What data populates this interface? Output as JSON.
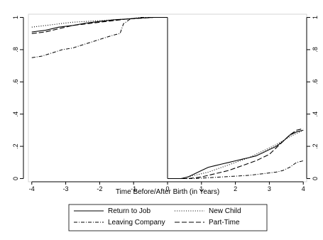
{
  "chart_data": {
    "type": "line",
    "title": "",
    "xlabel": "Time Before/After Birth (in Years)",
    "ylabel": "",
    "xlim": [
      -4.1,
      4.1
    ],
    "ylim": [
      -0.02,
      1.02
    ],
    "xticks": [
      -4,
      -3,
      -2,
      -1,
      0,
      1,
      2,
      3,
      4
    ],
    "xtick_labels": [
      "-4",
      "-3",
      "-2",
      "-1",
      "0",
      "1",
      "2",
      "3",
      "4"
    ],
    "yticks": [
      0,
      0.2,
      0.4,
      0.6,
      0.8,
      1
    ],
    "ytick_labels": [
      "0",
      ".2",
      ".4",
      ".6",
      ".8",
      "1"
    ],
    "right_axis": true,
    "grid": false,
    "legend_position": "bottom",
    "vertical_line_x": 0,
    "series": [
      {
        "name": "Return to Job",
        "style": "solid",
        "before": [
          [
            -4,
            0.91
          ],
          [
            -3.6,
            0.92
          ],
          [
            -3.2,
            0.94
          ],
          [
            -2.8,
            0.95
          ],
          [
            -2.4,
            0.965
          ],
          [
            -2,
            0.975
          ],
          [
            -1.6,
            0.985
          ],
          [
            -1.2,
            0.99
          ],
          [
            -0.8,
            0.997
          ],
          [
            -0.4,
            1.0
          ],
          [
            0,
            1.0
          ]
        ],
        "after": [
          [
            0,
            0.0
          ],
          [
            0.4,
            0.0
          ],
          [
            0.6,
            0.01
          ],
          [
            0.8,
            0.03
          ],
          [
            1.0,
            0.05
          ],
          [
            1.2,
            0.07
          ],
          [
            1.4,
            0.08
          ],
          [
            1.6,
            0.09
          ],
          [
            1.8,
            0.1
          ],
          [
            2.0,
            0.11
          ],
          [
            2.2,
            0.12
          ],
          [
            2.4,
            0.13
          ],
          [
            2.6,
            0.14
          ],
          [
            2.8,
            0.16
          ],
          [
            3.0,
            0.18
          ],
          [
            3.2,
            0.2
          ],
          [
            3.4,
            0.23
          ],
          [
            3.6,
            0.27
          ],
          [
            3.8,
            0.29
          ],
          [
            4.0,
            0.3
          ]
        ]
      },
      {
        "name": "New Child",
        "style": "dotted",
        "before": [
          [
            -4,
            0.94
          ],
          [
            -3.6,
            0.95
          ],
          [
            -3.2,
            0.96
          ],
          [
            -2.8,
            0.97
          ],
          [
            -2.4,
            0.975
          ],
          [
            -2,
            0.98
          ],
          [
            -1.6,
            0.985
          ],
          [
            -1.2,
            0.99
          ],
          [
            -0.8,
            0.995
          ],
          [
            -0.4,
            1.0
          ],
          [
            0,
            1.0
          ]
        ],
        "after": [
          [
            0,
            0.0
          ],
          [
            0.4,
            0.0
          ],
          [
            0.8,
            0.02
          ],
          [
            1.2,
            0.04
          ],
          [
            1.6,
            0.07
          ],
          [
            2.0,
            0.1
          ],
          [
            2.4,
            0.13
          ],
          [
            2.8,
            0.17
          ],
          [
            3.2,
            0.21
          ],
          [
            3.6,
            0.26
          ],
          [
            4.0,
            0.3
          ]
        ]
      },
      {
        "name": "Leaving Company",
        "style": "dash-dot",
        "before": [
          [
            -4,
            0.75
          ],
          [
            -3.7,
            0.76
          ],
          [
            -3.4,
            0.78
          ],
          [
            -3.1,
            0.8
          ],
          [
            -2.8,
            0.81
          ],
          [
            -2.5,
            0.83
          ],
          [
            -2.2,
            0.85
          ],
          [
            -1.9,
            0.87
          ],
          [
            -1.6,
            0.89
          ],
          [
            -1.4,
            0.9
          ],
          [
            -1.3,
            0.96
          ],
          [
            -1.1,
            0.99
          ],
          [
            -0.8,
            1.0
          ],
          [
            0,
            1.0
          ]
        ],
        "after": [
          [
            0,
            0.0
          ],
          [
            0.8,
            0.0
          ],
          [
            1.2,
            0.005
          ],
          [
            1.6,
            0.01
          ],
          [
            2.0,
            0.015
          ],
          [
            2.4,
            0.02
          ],
          [
            2.8,
            0.03
          ],
          [
            3.2,
            0.04
          ],
          [
            3.4,
            0.05
          ],
          [
            3.6,
            0.07
          ],
          [
            3.8,
            0.1
          ],
          [
            4.0,
            0.11
          ]
        ]
      },
      {
        "name": "Part-Time",
        "style": "dashed",
        "before": [
          [
            -4,
            0.9
          ],
          [
            -3.6,
            0.91
          ],
          [
            -3.2,
            0.93
          ],
          [
            -2.8,
            0.95
          ],
          [
            -2.4,
            0.96
          ],
          [
            -2,
            0.97
          ],
          [
            -1.6,
            0.98
          ],
          [
            -1.2,
            0.99
          ],
          [
            -0.8,
            0.995
          ],
          [
            -0.4,
            1.0
          ],
          [
            0,
            1.0
          ]
        ],
        "after": [
          [
            0,
            0.0
          ],
          [
            0.6,
            0.0
          ],
          [
            1.0,
            0.01
          ],
          [
            1.4,
            0.03
          ],
          [
            1.8,
            0.05
          ],
          [
            2.2,
            0.08
          ],
          [
            2.6,
            0.11
          ],
          [
            3.0,
            0.15
          ],
          [
            3.2,
            0.19
          ],
          [
            3.4,
            0.23
          ],
          [
            3.6,
            0.27
          ],
          [
            3.8,
            0.3
          ],
          [
            4.0,
            0.31
          ]
        ]
      }
    ]
  }
}
